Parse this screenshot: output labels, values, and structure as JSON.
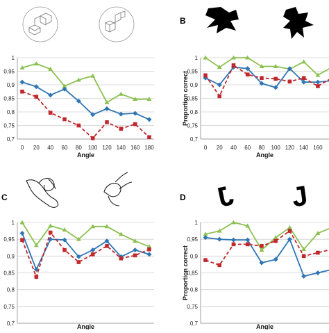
{
  "colors": {
    "green": "#8cc152",
    "blue": "#2f75b5",
    "red": "#c0282d"
  },
  "chart_data": [
    {
      "type": "line",
      "panel_label": "",
      "x": [
        0,
        20,
        40,
        60,
        80,
        100,
        120,
        140,
        160,
        180
      ],
      "xlabel": "Angle",
      "ylabel": "",
      "ylim": [
        0.7,
        1.0
      ],
      "yticks": [
        "0,7",
        "0,75",
        "0,8",
        "0,85",
        "0,9",
        "0,95",
        "1"
      ],
      "xticks": [
        "0",
        "20",
        "40",
        "60",
        "80",
        "100",
        "120",
        "140",
        "160",
        "180"
      ],
      "series": [
        {
          "color": "green",
          "marker": "triangle",
          "dash": false,
          "values": [
            0.963,
            0.978,
            0.958,
            0.895,
            0.918,
            0.933,
            0.835,
            0.866,
            0.847,
            0.847
          ]
        },
        {
          "color": "blue",
          "marker": "diamond",
          "dash": false,
          "values": [
            0.91,
            0.893,
            0.862,
            0.884,
            0.84,
            0.79,
            0.812,
            0.792,
            0.795,
            0.772
          ]
        },
        {
          "color": "red",
          "marker": "square",
          "dash": true,
          "values": [
            0.875,
            0.856,
            0.797,
            0.773,
            0.75,
            0.703,
            0.762,
            0.738,
            0.755,
            0.707
          ]
        }
      ]
    },
    {
      "type": "line",
      "panel_label": "B",
      "x": [
        0,
        20,
        40,
        60,
        80,
        100,
        120,
        140,
        160,
        180
      ],
      "xlabel": "Angle",
      "ylabel": "Proportion correct",
      "ylim": [
        0.7,
        1.0
      ],
      "yticks": [
        "0,7",
        "0,75",
        "0,8",
        "0,85",
        "0,9",
        "0,95",
        "1"
      ],
      "xticks": [
        "0",
        "20",
        "40",
        "60",
        "80",
        "100",
        "120",
        "140",
        "160"
      ],
      "series": [
        {
          "color": "green",
          "marker": "triangle",
          "dash": false,
          "values": [
            1.0,
            0.965,
            1.0,
            1.0,
            0.968,
            0.968,
            0.958,
            0.985,
            0.936,
            0.965
          ]
        },
        {
          "color": "blue",
          "marker": "diamond",
          "dash": false,
          "values": [
            0.925,
            0.9,
            0.965,
            0.96,
            0.905,
            0.89,
            0.96,
            0.91,
            0.91,
            0.915
          ]
        },
        {
          "color": "red",
          "marker": "square",
          "dash": true,
          "values": [
            0.935,
            0.858,
            0.972,
            0.938,
            0.925,
            0.922,
            0.912,
            0.925,
            0.895,
            0.925
          ]
        }
      ]
    },
    {
      "type": "line",
      "panel_label": "C",
      "x": [
        0,
        20,
        40,
        60,
        80,
        100,
        120,
        140,
        160,
        180
      ],
      "xlabel": "Angle",
      "ylabel": "",
      "ylim": [
        0.7,
        1.0
      ],
      "yticks": [
        "0,7",
        "0,75",
        "0,8",
        "0,85",
        "0,9",
        "0,95",
        "1"
      ],
      "xticks": [
        "0",
        "20",
        "40",
        "60",
        "80",
        "100",
        "120",
        "140",
        "160",
        "180"
      ],
      "series": [
        {
          "color": "green",
          "marker": "triangle",
          "dash": false,
          "values": [
            1.0,
            0.932,
            0.99,
            0.978,
            0.95,
            0.988,
            0.988,
            0.965,
            0.945,
            0.928
          ]
        },
        {
          "color": "blue",
          "marker": "diamond",
          "dash": false,
          "values": [
            0.968,
            0.86,
            0.95,
            0.948,
            0.898,
            0.918,
            0.945,
            0.898,
            0.918,
            0.905
          ]
        },
        {
          "color": "red",
          "marker": "square",
          "dash": true,
          "values": [
            0.948,
            0.838,
            0.97,
            0.918,
            0.882,
            0.905,
            0.93,
            0.893,
            0.902,
            0.92
          ]
        }
      ]
    },
    {
      "type": "line",
      "panel_label": "D",
      "x": [
        0,
        20,
        40,
        60,
        80,
        100,
        120,
        140,
        160,
        180
      ],
      "xlabel": "Angle",
      "ylabel": "Proportion correct",
      "ylim": [
        0.7,
        1.0
      ],
      "yticks": [
        "0,7",
        "0,75",
        "0,8",
        "0,85",
        "0,9",
        "0,95",
        "1"
      ],
      "xticks": [
        "0",
        "20",
        "40",
        "60",
        "80",
        "100",
        "120",
        "140",
        "160"
      ],
      "series": [
        {
          "color": "green",
          "marker": "triangle",
          "dash": false,
          "values": [
            0.965,
            0.975,
            1.0,
            0.99,
            0.918,
            0.955,
            0.985,
            0.92,
            0.968,
            0.985
          ]
        },
        {
          "color": "blue",
          "marker": "diamond",
          "dash": false,
          "values": [
            0.955,
            0.95,
            0.948,
            0.948,
            0.88,
            0.89,
            0.95,
            0.84,
            0.85,
            0.86
          ]
        },
        {
          "color": "red",
          "marker": "square",
          "dash": true,
          "values": [
            0.888,
            0.873,
            0.935,
            0.935,
            0.93,
            0.945,
            0.975,
            0.9,
            0.91,
            0.92
          ]
        }
      ]
    }
  ]
}
